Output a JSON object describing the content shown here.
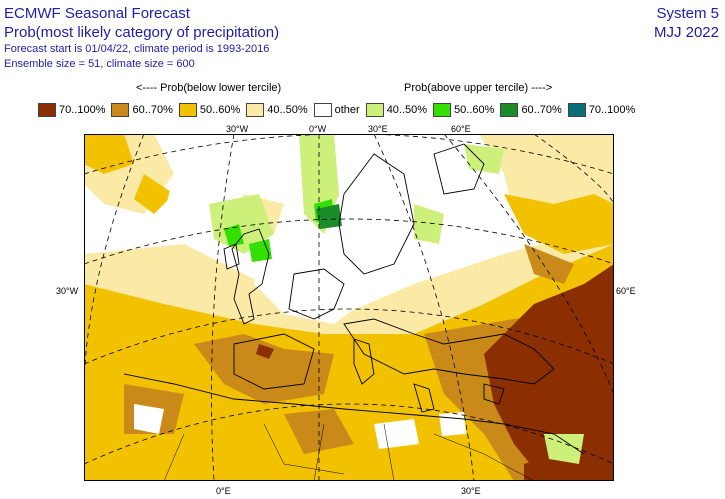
{
  "header": {
    "title": "ECMWF Seasonal Forecast",
    "subtitle": "Prob(most likely category of precipitation)",
    "line3": "Forecast start is 01/04/22, climate period is 1993-2016",
    "line4": "Ensemble size = 51, climate size = 600",
    "system": "System 5",
    "period": "MJJ 2022"
  },
  "legend": {
    "below_label": "<---- Prob(below lower tercile)",
    "above_label": "Prob(above upper tercile) ---->",
    "items": [
      {
        "label": "70..100%",
        "color": "#8b2e00"
      },
      {
        "label": "60..70%",
        "color": "#c98a1a"
      },
      {
        "label": "50..60%",
        "color": "#f2c200"
      },
      {
        "label": "40..50%",
        "color": "#fbe9a6"
      },
      {
        "label": "other",
        "color": "#ffffff"
      },
      {
        "label": "40..50%",
        "color": "#ccf07a"
      },
      {
        "label": "50..60%",
        "color": "#33e000"
      },
      {
        "label": "60..70%",
        "color": "#1a8c2a"
      },
      {
        "label": "70..100%",
        "color": "#0a6f78"
      }
    ]
  },
  "map": {
    "top_labels": [
      "30°W",
      "0°W",
      "30°E",
      "60°E"
    ],
    "left_label": "30°W",
    "right_label": "60°E",
    "bottom_labels": [
      "0°E",
      "30°E"
    ]
  }
}
